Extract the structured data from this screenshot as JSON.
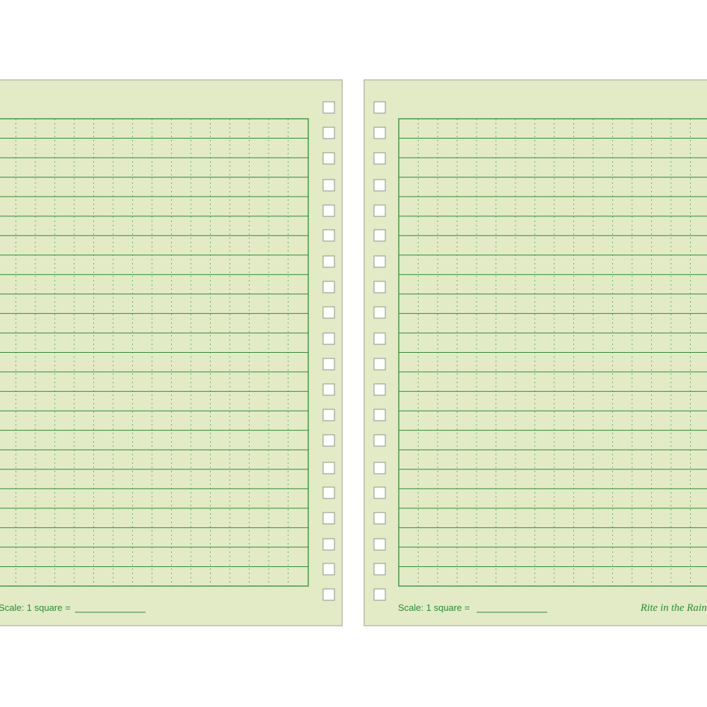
{
  "pages": [
    {
      "scale_label": "Scale: 1 square ="
    },
    {
      "scale_label": "Scale: 1 square ="
    }
  ],
  "logo": "Rite in the Rain"
}
